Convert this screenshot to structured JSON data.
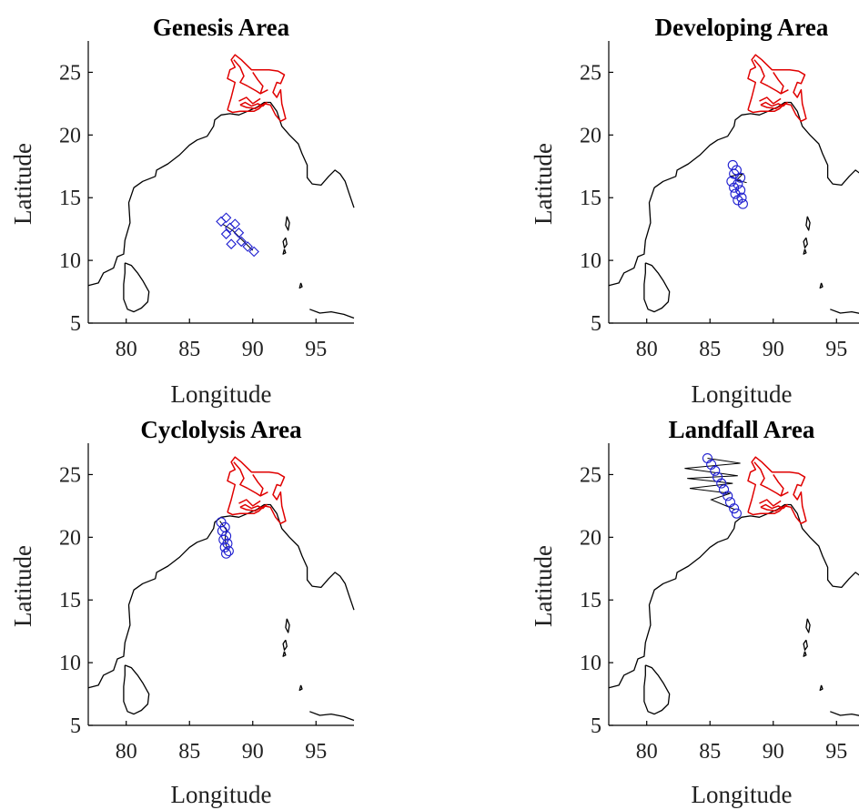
{
  "colors": {
    "coast": "#000000",
    "bangladesh": "#e00000",
    "observations": "#1f1fd0",
    "track": "#000000"
  },
  "chart_data": [
    {
      "type": "map-scatter",
      "title": "Genesis Area",
      "xlabel": "Longitude",
      "ylabel": "Latitude",
      "xlim": [
        77,
        98
      ],
      "ylim": [
        5,
        27.5
      ],
      "xticks": [
        80,
        85,
        90,
        95
      ],
      "yticks": [
        5,
        10,
        15,
        20,
        25
      ],
      "grid": false,
      "points": [
        [
          87.5,
          13.1
        ],
        [
          87.9,
          13.4
        ],
        [
          88.2,
          12.6
        ],
        [
          88.6,
          12.9
        ],
        [
          88.9,
          12.2
        ],
        [
          88.3,
          11.3
        ],
        [
          89.1,
          11.5
        ],
        [
          89.6,
          11.1
        ],
        [
          90.1,
          10.7
        ],
        [
          87.9,
          12.1
        ]
      ]
    },
    {
      "type": "map-scatter",
      "title": "Developing Area",
      "xlabel": "Longitude",
      "ylabel": "Latitude",
      "xlim": [
        77,
        98
      ],
      "ylim": [
        5,
        27.5
      ],
      "xticks": [
        80,
        85,
        90,
        95
      ],
      "yticks": [
        5,
        10,
        15,
        20,
        25
      ],
      "grid": false,
      "points": [
        [
          86.8,
          17.6
        ],
        [
          87.1,
          17.2
        ],
        [
          86.9,
          16.9
        ],
        [
          87.4,
          16.6
        ],
        [
          86.7,
          16.3
        ],
        [
          87.2,
          16.1
        ],
        [
          86.9,
          15.8
        ],
        [
          87.4,
          15.6
        ],
        [
          87.0,
          15.3
        ],
        [
          87.5,
          15.0
        ],
        [
          87.2,
          14.8
        ],
        [
          87.6,
          14.5
        ]
      ]
    },
    {
      "type": "map-scatter",
      "title": "Cyclolysis Area",
      "xlabel": "Longitude",
      "ylabel": "Latitude",
      "xlim": [
        77,
        98
      ],
      "ylim": [
        5,
        27.5
      ],
      "xticks": [
        80,
        85,
        90,
        95
      ],
      "yticks": [
        5,
        10,
        15,
        20,
        25
      ],
      "grid": false,
      "points": [
        [
          87.5,
          21.2
        ],
        [
          87.8,
          20.8
        ],
        [
          87.6,
          20.5
        ],
        [
          87.9,
          20.1
        ],
        [
          87.7,
          19.8
        ],
        [
          88.0,
          19.5
        ],
        [
          87.8,
          19.2
        ],
        [
          88.1,
          18.9
        ],
        [
          87.9,
          18.7
        ]
      ]
    },
    {
      "type": "map-scatter",
      "title": "Landfall Area",
      "xlabel": "Longitude",
      "ylabel": "Latitude",
      "xlim": [
        77,
        98
      ],
      "ylim": [
        5,
        27.5
      ],
      "xticks": [
        80,
        85,
        90,
        95
      ],
      "yticks": [
        5,
        10,
        15,
        20,
        25
      ],
      "grid": false,
      "points": [
        [
          84.8,
          26.3
        ],
        [
          85.1,
          25.8
        ],
        [
          85.4,
          25.3
        ],
        [
          85.6,
          24.8
        ],
        [
          85.9,
          24.3
        ],
        [
          86.1,
          23.8
        ],
        [
          86.4,
          23.3
        ],
        [
          86.6,
          22.8
        ],
        [
          86.9,
          22.3
        ],
        [
          87.1,
          21.9
        ]
      ]
    }
  ]
}
